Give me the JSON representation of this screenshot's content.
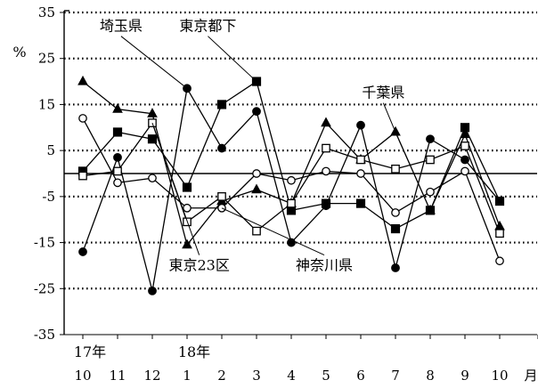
{
  "chart_data": {
    "type": "line",
    "title": "",
    "ylabel": "%",
    "xlabel": "",
    "x_unit_label": "月",
    "year_labels": [
      {
        "text": "17年",
        "at_index": 0
      },
      {
        "text": "18年",
        "at_index": 3
      }
    ],
    "categories": [
      "10",
      "11",
      "12",
      "1",
      "2",
      "3",
      "4",
      "5",
      "6",
      "7",
      "8",
      "9",
      "10"
    ],
    "ylim": [
      -35,
      35
    ],
    "yticks": [
      35,
      25,
      15,
      5,
      -5,
      -15,
      -25,
      -35
    ],
    "grid": "dotted horizontal",
    "series": [
      {
        "name": "埼玉県",
        "marker": "filled-circle",
        "color": "#000000",
        "values": [
          -17,
          3.5,
          -25.5,
          18.5,
          5.5,
          13.5,
          -15,
          -7,
          10.5,
          -20.5,
          7.5,
          3,
          -6
        ]
      },
      {
        "name": "東京都下",
        "marker": "filled-square",
        "color": "#000000",
        "values": [
          0.5,
          9,
          7.5,
          -3,
          15,
          20,
          -8,
          -6.5,
          -6.5,
          -12,
          -8,
          10,
          -6
        ]
      },
      {
        "name": "千葉県",
        "marker": "filled-triangle",
        "color": "#000000",
        "values": [
          20,
          14,
          13,
          -15.5,
          -6,
          -3.5,
          -6.5,
          11,
          3,
          9,
          -8,
          8.5,
          -11.5
        ]
      },
      {
        "name": "東京23区",
        "marker": "open-square",
        "color": "#000000",
        "values": [
          -0.5,
          0.5,
          11,
          -10.5,
          -5,
          -12.5,
          -6.5,
          5.5,
          3,
          1,
          3,
          6,
          -13
        ]
      },
      {
        "name": "神奈川県",
        "marker": "open-circle",
        "color": "#000000",
        "values": [
          12,
          -2,
          -1,
          -7.5,
          -7.5,
          0,
          -1.5,
          0.5,
          0,
          -8.5,
          -4,
          0.5,
          -19
        ]
      }
    ],
    "callouts": [
      {
        "series": "埼玉県",
        "text": "埼玉県",
        "point_index": 3,
        "label_pos": {
          "x": 1.1,
          "y": 31
        }
      },
      {
        "series": "東京都下",
        "text": "東京都下",
        "point_index": 5,
        "label_pos": {
          "x": 3.6,
          "y": 31
        }
      },
      {
        "series": "千葉県",
        "text": "千葉県",
        "point_index": 9,
        "label_pos": {
          "x": 8.65,
          "y": 16.5
        }
      },
      {
        "series": "東京23区",
        "text": "東京23区",
        "point_index": 2,
        "label_pos": {
          "x": 3.35,
          "y": -21
        }
      },
      {
        "series": "神奈川県",
        "text": "神奈川県",
        "point_index": 4,
        "label_pos": {
          "x": 6.95,
          "y": -21
        }
      }
    ]
  }
}
